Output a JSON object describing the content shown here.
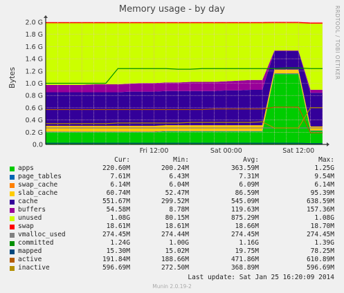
{
  "title": "Memory usage - by day",
  "side_text": "RRDTOOL / TOBI OETIKER",
  "ylabel": "Bytes",
  "footer": {
    "last_update": "Last update:  Sat Jan 25 16:20:09 2014",
    "version": "Munin 2.0.19-2"
  },
  "legend_headers": {
    "cur": "Cur:",
    "min": "Min:",
    "avg": "Avg:",
    "max": "Max:"
  },
  "legend": [
    {
      "name": "apps",
      "color": "#00cc00",
      "cur": "220.60M",
      "min": "200.24M",
      "avg": "363.59M",
      "max": "1.25G"
    },
    {
      "name": "page_tables",
      "color": "#0066b3",
      "cur": "7.61M",
      "min": "6.43M",
      "avg": "7.31M",
      "max": "9.54M"
    },
    {
      "name": "swap_cache",
      "color": "#ff8000",
      "cur": "6.14M",
      "min": "6.04M",
      "avg": "6.09M",
      "max": "6.14M"
    },
    {
      "name": "slab_cache",
      "color": "#ffcc00",
      "cur": "60.74M",
      "min": "52.47M",
      "avg": "86.59M",
      "max": "95.39M"
    },
    {
      "name": "cache",
      "color": "#330099",
      "cur": "551.67M",
      "min": "299.52M",
      "avg": "545.09M",
      "max": "638.59M"
    },
    {
      "name": "buffers",
      "color": "#990099",
      "cur": "54.58M",
      "min": "8.78M",
      "avg": "119.63M",
      "max": "157.36M"
    },
    {
      "name": "unused",
      "color": "#ccff00",
      "cur": "1.08G",
      "min": "80.15M",
      "avg": "875.29M",
      "max": "1.08G"
    },
    {
      "name": "swap",
      "color": "#ff0000",
      "cur": "18.61M",
      "min": "18.61M",
      "avg": "18.66M",
      "max": "18.70M"
    },
    {
      "name": "vmalloc_used",
      "color": "#808080",
      "cur": "274.45M",
      "min": "274.44M",
      "avg": "274.45M",
      "max": "274.45M"
    },
    {
      "name": "committed",
      "color": "#008f00",
      "cur": "1.24G",
      "min": "1.00G",
      "avg": "1.16G",
      "max": "1.39G"
    },
    {
      "name": "mapped",
      "color": "#00487d",
      "cur": "15.30M",
      "min": "15.02M",
      "avg": "19.75M",
      "max": "78.25M"
    },
    {
      "name": "active",
      "color": "#b35a00",
      "cur": "191.84M",
      "min": "188.66M",
      "avg": "471.86M",
      "max": "610.89M"
    },
    {
      "name": "inactive",
      "color": "#b38f00",
      "cur": "596.69M",
      "min": "272.50M",
      "avg": "368.89M",
      "max": "596.69M"
    }
  ],
  "chart_data": {
    "type": "area",
    "title": "Memory usage - by day",
    "ylabel": "Bytes",
    "x_ticks": [
      "Fri 12:00",
      "Sat 00:00",
      "Sat 12:00"
    ],
    "y_ticks": [
      "0.0",
      "0.2 G",
      "0.4 G",
      "0.6 G",
      "0.8 G",
      "1.0 G",
      "1.2 G",
      "1.4 G",
      "1.6 G",
      "1.8 G",
      "2.0 G"
    ],
    "ylim": [
      0,
      2.0
    ],
    "y_unit": "G",
    "grid": true,
    "x_hours": [
      -6,
      -4,
      -2,
      0,
      2,
      4,
      6,
      8,
      10,
      12,
      14,
      16,
      18,
      20,
      22,
      24,
      26,
      28,
      30,
      32,
      34,
      36,
      38,
      40
    ],
    "stacked_series": [
      {
        "name": "apps",
        "values": [
          0.2,
          0.2,
          0.2,
          0.2,
          0.2,
          0.2,
          0.2,
          0.2,
          0.2,
          0.2,
          0.21,
          0.21,
          0.21,
          0.21,
          0.21,
          0.21,
          0.21,
          0.21,
          0.21,
          1.15,
          1.15,
          1.15,
          0.22,
          0.22
        ]
      },
      {
        "name": "page_tables",
        "values": [
          0.007,
          0.007,
          0.007,
          0.007,
          0.007,
          0.007,
          0.007,
          0.007,
          0.007,
          0.007,
          0.007,
          0.007,
          0.007,
          0.007,
          0.007,
          0.007,
          0.007,
          0.007,
          0.007,
          0.009,
          0.009,
          0.009,
          0.008,
          0.008
        ]
      },
      {
        "name": "swap_cache",
        "values": [
          0.006,
          0.006,
          0.006,
          0.006,
          0.006,
          0.006,
          0.006,
          0.006,
          0.006,
          0.006,
          0.006,
          0.006,
          0.006,
          0.006,
          0.006,
          0.006,
          0.006,
          0.006,
          0.006,
          0.006,
          0.006,
          0.006,
          0.006,
          0.006
        ]
      },
      {
        "name": "slab_cache",
        "values": [
          0.09,
          0.09,
          0.09,
          0.09,
          0.09,
          0.09,
          0.09,
          0.09,
          0.09,
          0.09,
          0.09,
          0.09,
          0.09,
          0.09,
          0.09,
          0.09,
          0.09,
          0.09,
          0.09,
          0.06,
          0.06,
          0.06,
          0.06,
          0.06
        ]
      },
      {
        "name": "cache",
        "values": [
          0.55,
          0.55,
          0.55,
          0.55,
          0.55,
          0.55,
          0.55,
          0.56,
          0.56,
          0.56,
          0.56,
          0.56,
          0.56,
          0.56,
          0.56,
          0.57,
          0.57,
          0.58,
          0.58,
          0.3,
          0.3,
          0.3,
          0.55,
          0.55
        ]
      },
      {
        "name": "buffers",
        "values": [
          0.12,
          0.12,
          0.12,
          0.12,
          0.13,
          0.13,
          0.13,
          0.13,
          0.14,
          0.14,
          0.14,
          0.14,
          0.15,
          0.15,
          0.15,
          0.15,
          0.16,
          0.16,
          0.16,
          0.01,
          0.01,
          0.01,
          0.05,
          0.05
        ]
      },
      {
        "name": "unused",
        "values": [
          1.01,
          1.01,
          1.01,
          1.01,
          1.0,
          1.0,
          1.0,
          0.99,
          0.98,
          0.98,
          0.97,
          0.97,
          0.96,
          0.96,
          0.96,
          0.95,
          0.94,
          0.93,
          0.93,
          0.45,
          0.45,
          0.45,
          1.08,
          1.08
        ]
      },
      {
        "name": "swap",
        "values": [
          0.019,
          0.019,
          0.019,
          0.019,
          0.019,
          0.019,
          0.019,
          0.019,
          0.019,
          0.019,
          0.019,
          0.019,
          0.019,
          0.019,
          0.019,
          0.019,
          0.019,
          0.019,
          0.019,
          0.019,
          0.019,
          0.019,
          0.019,
          0.019
        ]
      }
    ],
    "line_series": [
      {
        "name": "vmalloc_used",
        "values": [
          0.27,
          0.27,
          0.27,
          0.27,
          0.27,
          0.27,
          0.27,
          0.27,
          0.27,
          0.27,
          0.27,
          0.27,
          0.27,
          0.27,
          0.27,
          0.27,
          0.27,
          0.27,
          0.27,
          0.27,
          0.27,
          0.27,
          0.27,
          0.27
        ]
      },
      {
        "name": "committed",
        "values": [
          1.0,
          1.0,
          1.0,
          1.0,
          1.0,
          1.0,
          1.24,
          1.24,
          1.24,
          1.24,
          1.24,
          1.23,
          1.23,
          1.24,
          1.24,
          1.24,
          1.24,
          1.24,
          1.24,
          1.24,
          1.25,
          1.25,
          1.24,
          1.24
        ]
      },
      {
        "name": "mapped",
        "values": [
          0.02,
          0.02,
          0.02,
          0.02,
          0.02,
          0.02,
          0.02,
          0.02,
          0.02,
          0.02,
          0.02,
          0.02,
          0.02,
          0.02,
          0.02,
          0.02,
          0.02,
          0.02,
          0.02,
          0.02,
          0.02,
          0.02,
          0.015,
          0.015
        ]
      },
      {
        "name": "active",
        "values": [
          0.57,
          0.57,
          0.57,
          0.57,
          0.57,
          0.57,
          0.57,
          0.57,
          0.57,
          0.57,
          0.57,
          0.57,
          0.57,
          0.57,
          0.58,
          0.58,
          0.58,
          0.58,
          0.58,
          0.61,
          0.61,
          0.61,
          0.19,
          0.19
        ]
      },
      {
        "name": "inactive",
        "values": [
          0.34,
          0.34,
          0.34,
          0.34,
          0.34,
          0.34,
          0.35,
          0.35,
          0.35,
          0.35,
          0.35,
          0.35,
          0.36,
          0.36,
          0.36,
          0.36,
          0.36,
          0.36,
          0.37,
          0.27,
          0.27,
          0.27,
          0.6,
          0.6
        ]
      }
    ]
  }
}
